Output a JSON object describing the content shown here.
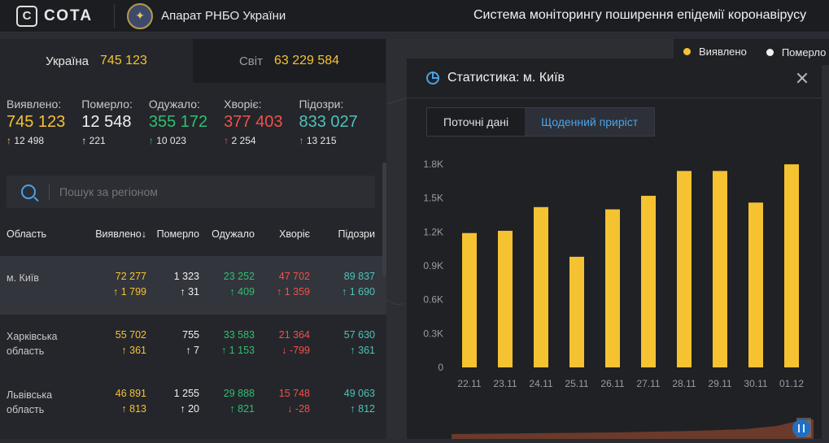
{
  "header": {
    "logo_mark": "С",
    "logo_text": "СОТА",
    "org": "Апарат РНБО України",
    "title": "Система моніторингу поширення епідемії коронавірусу"
  },
  "tabs": [
    {
      "label": "Україна",
      "value": "745 123"
    },
    {
      "label": "Світ",
      "value": "63 229 584"
    }
  ],
  "stats": [
    {
      "label": "Виявлено:",
      "value": "745 123",
      "delta": "12 498",
      "color": "#f5c232"
    },
    {
      "label": "Померло:",
      "value": "12 548",
      "delta": "221",
      "color": "#f0f0f0"
    },
    {
      "label": "Одужало:",
      "value": "355 172",
      "delta": "10 023",
      "color": "#2fbf71"
    },
    {
      "label": "Хворіє:",
      "value": "377 403",
      "delta": "2 254",
      "color": "#f0514a"
    },
    {
      "label": "Підозри:",
      "value": "833 027",
      "delta": "13 215",
      "color": "#4ec2b8"
    }
  ],
  "search": {
    "placeholder": "Пошук за регіоном"
  },
  "table": {
    "headers": [
      "Область",
      "Виявлено↓",
      "Померло",
      "Одужало",
      "Хворіє",
      "Підозри"
    ],
    "rows": [
      {
        "name": "м. Київ",
        "values": [
          "72 277",
          "1 323",
          "23 252",
          "47 702",
          "89 837"
        ],
        "deltas": [
          "1 799",
          "31",
          "409",
          "1 359",
          "1 690"
        ],
        "arrows": [
          "↑",
          "↑",
          "↑",
          "↑",
          "↑"
        ]
      },
      {
        "name": "Харківська область",
        "values": [
          "55 702",
          "755",
          "33 583",
          "21 364",
          "57 630"
        ],
        "deltas": [
          "361",
          "7",
          "1 153",
          "-799",
          "361"
        ],
        "arrows": [
          "↑",
          "↑",
          "↑",
          "↓",
          "↑"
        ]
      },
      {
        "name": "Львівська область",
        "values": [
          "46 891",
          "1 255",
          "29 888",
          "15 748",
          "49 063"
        ],
        "deltas": [
          "813",
          "20",
          "821",
          "-28",
          "812"
        ],
        "arrows": [
          "↑",
          "↑",
          "↑",
          "↓",
          "↑"
        ]
      }
    ]
  },
  "legend": [
    {
      "label": "Виявлено",
      "color": "#f5c232"
    },
    {
      "label": "Померло",
      "color": "#f0f0f0"
    }
  ],
  "panel": {
    "title": "Статистика: м. Київ",
    "segments": [
      "Поточні дані",
      "Щоденний приріст"
    ],
    "active_segment": "Щоденний приріст"
  },
  "chart_data": {
    "type": "bar",
    "categories": [
      "22.11",
      "23.11",
      "24.11",
      "25.11",
      "26.11",
      "27.11",
      "28.11",
      "29.11",
      "30.11",
      "01.12"
    ],
    "values": [
      1190,
      1210,
      1420,
      980,
      1400,
      1520,
      1740,
      1740,
      1460,
      1799
    ],
    "ylim": [
      0,
      1800
    ],
    "yticks": [
      0,
      300,
      600,
      900,
      1200,
      1500,
      1800
    ],
    "ytick_labels": [
      "0",
      "0.3K",
      "0.6K",
      "0.9K",
      "1.2K",
      "1.5K",
      "1.8K"
    ],
    "color": "#f5c232",
    "grid": false
  }
}
